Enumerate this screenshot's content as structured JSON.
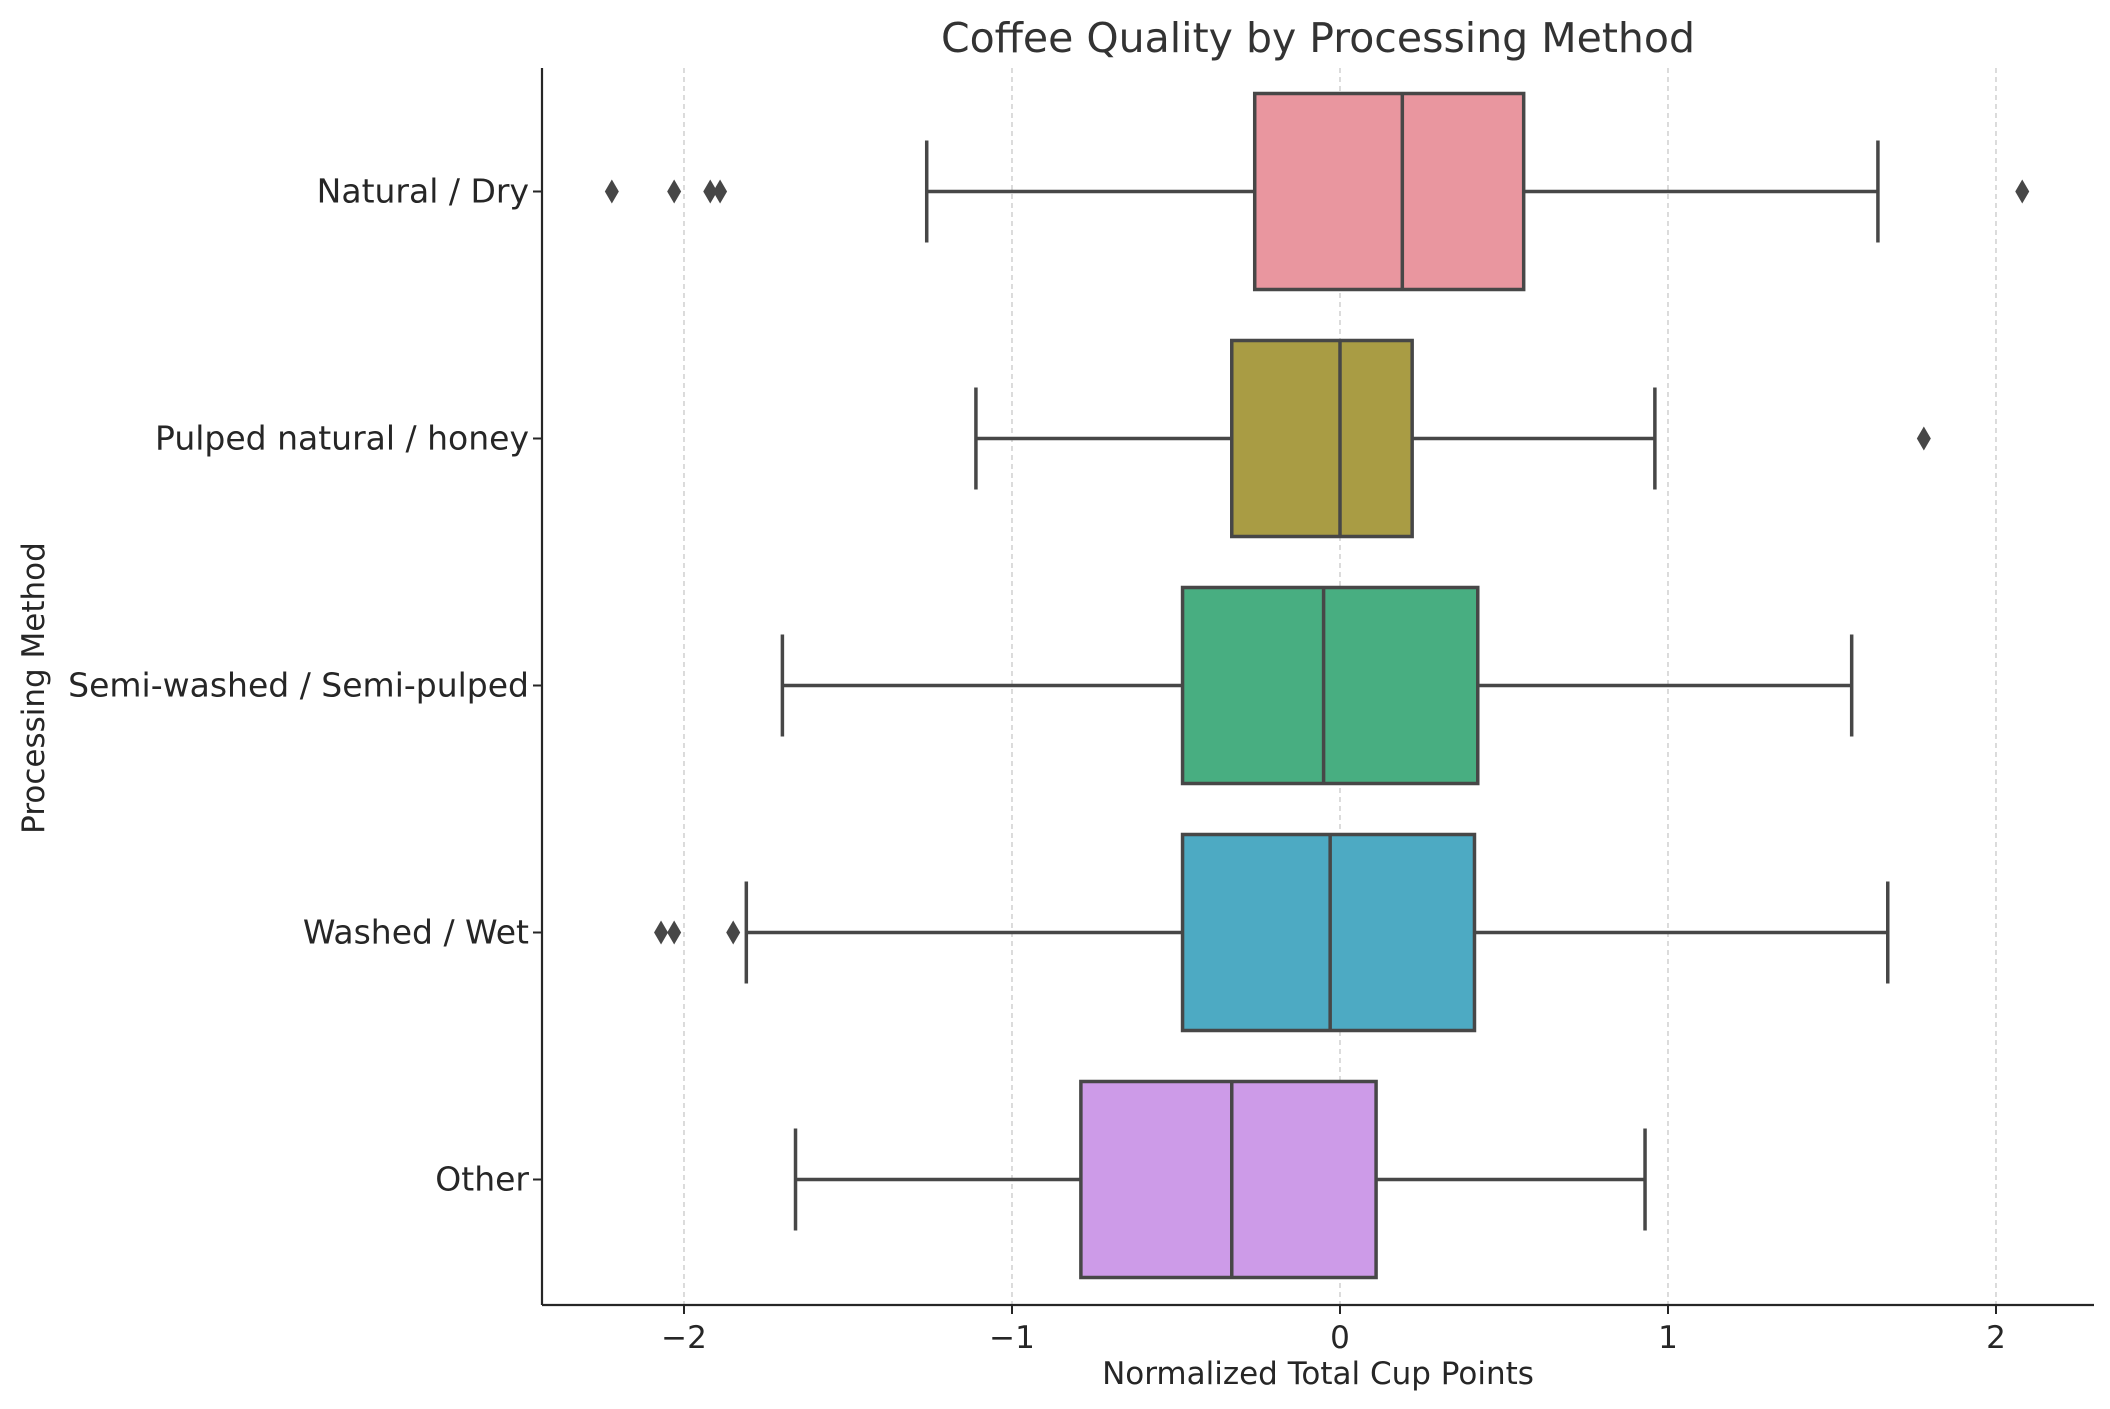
{
  "chart_data": {
    "type": "boxplot",
    "orientation": "horizontal",
    "title": "Coffee Quality by Processing Method",
    "xlabel": "Normalized Total Cup Points",
    "ylabel": "Processing Method",
    "xlim": [
      -2.37,
      2.37
    ],
    "xticks": [
      -2,
      -1,
      0,
      1,
      2
    ],
    "xtick_labels": [
      "−2",
      "−1",
      "0",
      "1",
      "2"
    ],
    "grid": "x-axis dashed",
    "categories": [
      "Natural / Dry",
      "Pulped natural / honey",
      "Semi-washed / Semi-pulped",
      "Washed / Wet",
      "Other"
    ],
    "boxes": [
      {
        "category": "Natural / Dry",
        "color": "#e9969f",
        "whisker_low": -1.26,
        "q1": -0.26,
        "median": 0.19,
        "q3": 0.56,
        "whisker_high": 1.64,
        "outliers": [
          -2.22,
          -2.03,
          -1.92,
          -1.89,
          2.08
        ]
      },
      {
        "category": "Pulped natural / honey",
        "color": "#a99c44",
        "whisker_low": -1.11,
        "q1": -0.33,
        "median": 0.0,
        "q3": 0.22,
        "whisker_high": 0.96,
        "outliers": [
          1.78
        ]
      },
      {
        "category": "Semi-washed / Semi-pulped",
        "color": "#48ae81",
        "whisker_low": -1.7,
        "q1": -0.48,
        "median": -0.05,
        "q3": 0.42,
        "whisker_high": 1.56,
        "outliers": []
      },
      {
        "category": "Washed / Wet",
        "color": "#4daac3",
        "whisker_low": -1.81,
        "q1": -0.48,
        "median": -0.03,
        "q3": 0.41,
        "whisker_high": 1.67,
        "outliers": [
          -2.07,
          -2.03,
          -1.85
        ]
      },
      {
        "category": "Other",
        "color": "#cd9be8",
        "whisker_low": -1.66,
        "q1": -0.79,
        "median": -0.33,
        "q3": 0.11,
        "whisker_high": 0.93,
        "outliers": []
      }
    ],
    "line_color": "#474747"
  }
}
